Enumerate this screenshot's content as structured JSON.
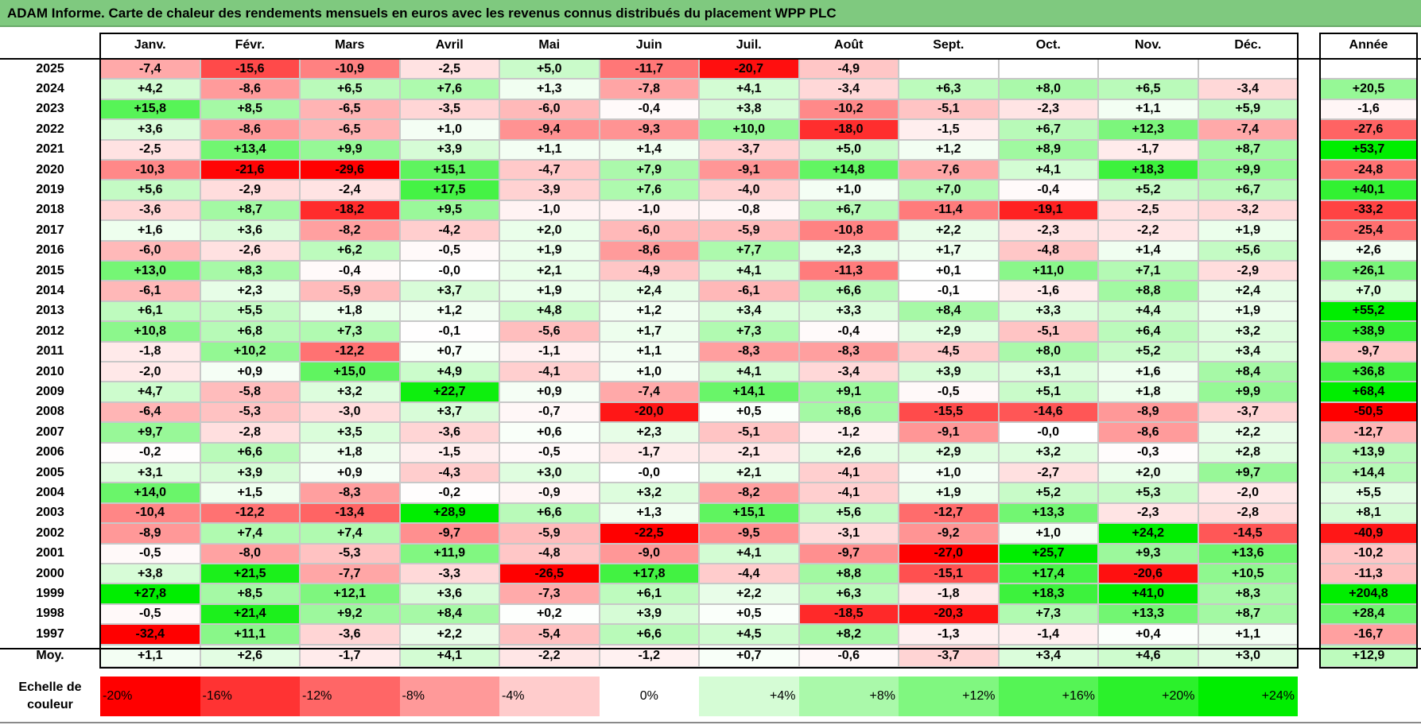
{
  "title": "ADAM Informe. Carte de chaleur des rendements mensuels en euros avec les revenus connus distribués du placement WPP PLC",
  "colors": {
    "title_bg": "#7fc97f",
    "neg_max": "#ff0000",
    "neutral": "#ffffff",
    "pos_max": "#00ee00"
  },
  "chart_data": {
    "type": "heatmap",
    "columns": [
      "Janv.",
      "Févr.",
      "Mars",
      "Avril",
      "Mai",
      "Juin",
      "Juil.",
      "Août",
      "Sept.",
      "Oct.",
      "Nov.",
      "Déc."
    ],
    "year_header": "Année",
    "rows": [
      {
        "year": "2025",
        "values": [
          "-7,4",
          "-15,6",
          "-10,9",
          "-2,5",
          "+5,0",
          "-11,7",
          "-20,7",
          "-4,9",
          "",
          "",
          "",
          ""
        ],
        "annual": ""
      },
      {
        "year": "2024",
        "values": [
          "+4,2",
          "-8,6",
          "+6,5",
          "+7,6",
          "+1,3",
          "-7,8",
          "+4,1",
          "-3,4",
          "+6,3",
          "+8,0",
          "+6,5",
          "-3,4"
        ],
        "annual": "+20,5"
      },
      {
        "year": "2023",
        "values": [
          "+15,8",
          "+8,5",
          "-6,5",
          "-3,5",
          "-6,0",
          "-0,4",
          "+3,8",
          "-10,2",
          "-5,1",
          "-2,3",
          "+1,1",
          "+5,9"
        ],
        "annual": "-1,6"
      },
      {
        "year": "2022",
        "values": [
          "+3,6",
          "-8,6",
          "-6,5",
          "+1,0",
          "-9,4",
          "-9,3",
          "+10,0",
          "-18,0",
          "-1,5",
          "+6,7",
          "+12,3",
          "-7,4"
        ],
        "annual": "-27,6"
      },
      {
        "year": "2021",
        "values": [
          "-2,5",
          "+13,4",
          "+9,9",
          "+3,9",
          "+1,1",
          "+1,4",
          "-3,7",
          "+5,0",
          "+1,2",
          "+8,9",
          "-1,7",
          "+8,7"
        ],
        "annual": "+53,7"
      },
      {
        "year": "2020",
        "values": [
          "-10,3",
          "-21,6",
          "-29,6",
          "+15,1",
          "-4,7",
          "+7,9",
          "-9,1",
          "+14,8",
          "-7,6",
          "+4,1",
          "+18,3",
          "+9,9"
        ],
        "annual": "-24,8"
      },
      {
        "year": "2019",
        "values": [
          "+5,6",
          "-2,9",
          "-2,4",
          "+17,5",
          "-3,9",
          "+7,6",
          "-4,0",
          "+1,0",
          "+7,0",
          "-0,4",
          "+5,2",
          "+6,7"
        ],
        "annual": "+40,1"
      },
      {
        "year": "2018",
        "values": [
          "-3,6",
          "+8,7",
          "-18,2",
          "+9,5",
          "-1,0",
          "-1,0",
          "-0,8",
          "+6,7",
          "-11,4",
          "-19,1",
          "-2,5",
          "-3,2"
        ],
        "annual": "-33,2"
      },
      {
        "year": "2017",
        "values": [
          "+1,6",
          "+3,6",
          "-8,2",
          "-4,2",
          "+2,0",
          "-6,0",
          "-5,9",
          "-10,8",
          "+2,2",
          "-2,3",
          "-2,2",
          "+1,9"
        ],
        "annual": "-25,4"
      },
      {
        "year": "2016",
        "values": [
          "-6,0",
          "-2,6",
          "+6,2",
          "-0,5",
          "+1,9",
          "-8,6",
          "+7,7",
          "+2,3",
          "+1,7",
          "-4,8",
          "+1,4",
          "+5,6"
        ],
        "annual": "+2,6"
      },
      {
        "year": "2015",
        "values": [
          "+13,0",
          "+8,3",
          "-0,4",
          "-0,0",
          "+2,1",
          "-4,9",
          "+4,1",
          "-11,3",
          "+0,1",
          "+11,0",
          "+7,1",
          "-2,9"
        ],
        "annual": "+26,1"
      },
      {
        "year": "2014",
        "values": [
          "-6,1",
          "+2,3",
          "-5,9",
          "+3,7",
          "+1,9",
          "+2,4",
          "-6,1",
          "+6,6",
          "-0,1",
          "-1,6",
          "+8,8",
          "+2,4"
        ],
        "annual": "+7,0"
      },
      {
        "year": "2013",
        "values": [
          "+6,1",
          "+5,5",
          "+1,8",
          "+1,2",
          "+4,8",
          "+1,2",
          "+3,4",
          "+3,3",
          "+8,4",
          "+3,3",
          "+4,4",
          "+1,9"
        ],
        "annual": "+55,2"
      },
      {
        "year": "2012",
        "values": [
          "+10,8",
          "+6,8",
          "+7,3",
          "-0,1",
          "-5,6",
          "+1,7",
          "+7,3",
          "-0,4",
          "+2,9",
          "-5,1",
          "+6,4",
          "+3,2"
        ],
        "annual": "+38,9"
      },
      {
        "year": "2011",
        "values": [
          "-1,8",
          "+10,2",
          "-12,2",
          "+0,7",
          "-1,1",
          "+1,1",
          "-8,3",
          "-8,3",
          "-4,5",
          "+8,0",
          "+5,2",
          "+3,4"
        ],
        "annual": "-9,7"
      },
      {
        "year": "2010",
        "values": [
          "-2,0",
          "+0,9",
          "+15,0",
          "+4,9",
          "-4,1",
          "+1,0",
          "+4,1",
          "-3,4",
          "+3,9",
          "+3,1",
          "+1,6",
          "+8,4"
        ],
        "annual": "+36,8"
      },
      {
        "year": "2009",
        "values": [
          "+4,7",
          "-5,8",
          "+3,2",
          "+22,7",
          "+0,9",
          "-7,4",
          "+14,1",
          "+9,1",
          "-0,5",
          "+5,1",
          "+1,8",
          "+9,9"
        ],
        "annual": "+68,4"
      },
      {
        "year": "2008",
        "values": [
          "-6,4",
          "-5,3",
          "-3,0",
          "+3,7",
          "-0,7",
          "-20,0",
          "+0,5",
          "+8,6",
          "-15,5",
          "-14,6",
          "-8,9",
          "-3,7"
        ],
        "annual": "-50,5"
      },
      {
        "year": "2007",
        "values": [
          "+9,7",
          "-2,8",
          "+3,5",
          "-3,6",
          "+0,6",
          "+2,3",
          "-5,1",
          "-1,2",
          "-9,1",
          "-0,0",
          "-8,6",
          "+2,2"
        ],
        "annual": "-12,7"
      },
      {
        "year": "2006",
        "values": [
          "-0,2",
          "+6,6",
          "+1,8",
          "-1,5",
          "-0,5",
          "-1,7",
          "-2,1",
          "+2,6",
          "+2,9",
          "+3,2",
          "-0,3",
          "+2,8"
        ],
        "annual": "+13,9"
      },
      {
        "year": "2005",
        "values": [
          "+3,1",
          "+3,9",
          "+0,9",
          "-4,3",
          "+3,0",
          "-0,0",
          "+2,1",
          "-4,1",
          "+1,0",
          "-2,7",
          "+2,0",
          "+9,7"
        ],
        "annual": "+14,4"
      },
      {
        "year": "2004",
        "values": [
          "+14,0",
          "+1,5",
          "-8,3",
          "-0,2",
          "-0,9",
          "+3,2",
          "-8,2",
          "-4,1",
          "+1,9",
          "+5,2",
          "+5,3",
          "-2,0"
        ],
        "annual": "+5,5"
      },
      {
        "year": "2003",
        "values": [
          "-10,4",
          "-12,2",
          "-13,4",
          "+28,9",
          "+6,6",
          "+1,3",
          "+15,1",
          "+5,6",
          "-12,7",
          "+13,3",
          "-2,3",
          "-2,8"
        ],
        "annual": "+8,1"
      },
      {
        "year": "2002",
        "values": [
          "-8,9",
          "+7,4",
          "+7,4",
          "-9,7",
          "-5,9",
          "-22,5",
          "-9,5",
          "-3,1",
          "-9,2",
          "+1,0",
          "+24,2",
          "-14,5"
        ],
        "annual": "-40,9"
      },
      {
        "year": "2001",
        "values": [
          "-0,5",
          "-8,0",
          "-5,3",
          "+11,9",
          "-4,8",
          "-9,0",
          "+4,1",
          "-9,7",
          "-27,0",
          "+25,7",
          "+9,3",
          "+13,6"
        ],
        "annual": "-10,2"
      },
      {
        "year": "2000",
        "values": [
          "+3,8",
          "+21,5",
          "-7,7",
          "-3,3",
          "-26,5",
          "+17,8",
          "-4,4",
          "+8,8",
          "-15,1",
          "+17,4",
          "-20,6",
          "+10,5"
        ],
        "annual": "-11,3"
      },
      {
        "year": "1999",
        "values": [
          "+27,8",
          "+8,5",
          "+12,1",
          "+3,6",
          "-7,3",
          "+6,1",
          "+2,2",
          "+6,3",
          "-1,8",
          "+18,3",
          "+41,0",
          "+8,3"
        ],
        "annual": "+204,8"
      },
      {
        "year": "1998",
        "values": [
          "-0,5",
          "+21,4",
          "+9,2",
          "+8,4",
          "+0,2",
          "+3,9",
          "+0,5",
          "-18,5",
          "-20,3",
          "+7,3",
          "+13,3",
          "+8,7"
        ],
        "annual": "+28,4"
      },
      {
        "year": "1997",
        "values": [
          "-32,4",
          "+11,1",
          "-3,6",
          "+2,2",
          "-5,4",
          "+6,6",
          "+4,5",
          "+8,2",
          "-1,3",
          "-1,4",
          "+0,4",
          "+1,1"
        ],
        "annual": "-16,7"
      }
    ],
    "average": {
      "label": "Moy.",
      "values": [
        "+1,1",
        "+2,6",
        "-1,7",
        "+4,1",
        "-2,2",
        "-1,2",
        "+0,7",
        "-0,6",
        "-3,7",
        "+3,4",
        "+4,6",
        "+3,0"
      ],
      "annual": "+12,9"
    },
    "scale": {
      "label": "Echelle de couleur",
      "stops": [
        "-20%",
        "-16%",
        "-12%",
        "-8%",
        "-4%",
        "0%",
        "+4%",
        "+8%",
        "+12%",
        "+16%",
        "+20%",
        "+24%"
      ]
    }
  }
}
